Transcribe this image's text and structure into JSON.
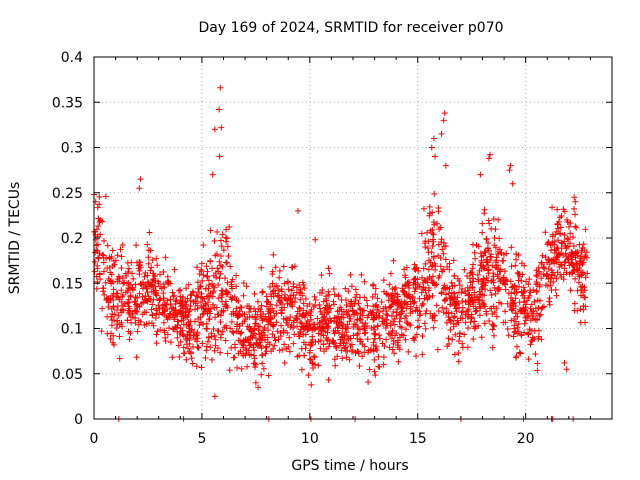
{
  "chart_data": {
    "type": "scatter",
    "title": "Day 169 of 2024, SRMTID for receiver p070",
    "xlabel": "GPS time / hours",
    "ylabel": "SRMTID / TECUs",
    "xlim": [
      0,
      24
    ],
    "ylim": [
      0,
      0.4
    ],
    "x_ticks": [
      0,
      5,
      10,
      15,
      20
    ],
    "x_tick_labels": [
      "0",
      "5",
      "10",
      "15",
      "20"
    ],
    "y_ticks": [
      0,
      0.05,
      0.1,
      0.15,
      0.2,
      0.25,
      0.3,
      0.35,
      0.4
    ],
    "y_tick_labels": [
      "0",
      "0.05",
      "0.1",
      "0.15",
      "0.2",
      "0.25",
      "0.3",
      "0.35",
      "0.4"
    ],
    "grid": true,
    "marker": "+",
    "color": "#ff0000",
    "profile_hours": [
      0,
      0.5,
      1,
      1.5,
      2,
      2.5,
      3,
      3.5,
      4,
      4.5,
      5,
      5.5,
      6,
      6.5,
      7,
      7.5,
      8,
      8.5,
      9,
      9.5,
      10,
      10.5,
      11,
      11.5,
      12,
      12.5,
      13,
      13.5,
      14,
      14.5,
      15,
      15.5,
      16,
      16.5,
      17,
      17.5,
      18,
      18.5,
      19,
      19.5,
      20,
      20.5,
      21,
      21.5,
      22,
      22.5,
      23
    ],
    "profile_center": [
      0.19,
      0.16,
      0.14,
      0.13,
      0.13,
      0.15,
      0.14,
      0.12,
      0.11,
      0.1,
      0.12,
      0.13,
      0.14,
      0.11,
      0.09,
      0.095,
      0.1,
      0.12,
      0.11,
      0.12,
      0.09,
      0.1,
      0.11,
      0.1,
      0.11,
      0.1,
      0.1,
      0.11,
      0.12,
      0.12,
      0.13,
      0.17,
      0.17,
      0.13,
      0.12,
      0.13,
      0.15,
      0.16,
      0.15,
      0.13,
      0.12,
      0.13,
      0.16,
      0.19,
      0.19,
      0.16,
      0.15
    ],
    "profile_spread": [
      0.05,
      0.05,
      0.05,
      0.04,
      0.05,
      0.04,
      0.04,
      0.04,
      0.04,
      0.04,
      0.05,
      0.06,
      0.07,
      0.05,
      0.04,
      0.04,
      0.05,
      0.05,
      0.05,
      0.05,
      0.04,
      0.04,
      0.04,
      0.04,
      0.04,
      0.04,
      0.04,
      0.04,
      0.04,
      0.04,
      0.05,
      0.06,
      0.07,
      0.05,
      0.04,
      0.04,
      0.06,
      0.06,
      0.05,
      0.05,
      0.04,
      0.05,
      0.05,
      0.04,
      0.05,
      0.05,
      0.04
    ],
    "peaks": [
      {
        "x": 5.85,
        "y": 0.366
      },
      {
        "x": 5.8,
        "y": 0.342
      },
      {
        "x": 5.9,
        "y": 0.322
      },
      {
        "x": 5.6,
        "y": 0.32
      },
      {
        "x": 5.82,
        "y": 0.29
      },
      {
        "x": 5.5,
        "y": 0.27
      },
      {
        "x": 5.6,
        "y": 0.025
      },
      {
        "x": 16.25,
        "y": 0.338
      },
      {
        "x": 16.2,
        "y": 0.33
      },
      {
        "x": 15.75,
        "y": 0.31
      },
      {
        "x": 16.1,
        "y": 0.315
      },
      {
        "x": 15.65,
        "y": 0.3
      },
      {
        "x": 16.3,
        "y": 0.28
      },
      {
        "x": 15.8,
        "y": 0.29
      },
      {
        "x": 18.35,
        "y": 0.292
      },
      {
        "x": 18.3,
        "y": 0.288
      },
      {
        "x": 17.9,
        "y": 0.27
      },
      {
        "x": 19.3,
        "y": 0.28
      },
      {
        "x": 19.25,
        "y": 0.275
      },
      {
        "x": 19.4,
        "y": 0.26
      },
      {
        "x": 2.15,
        "y": 0.265
      },
      {
        "x": 2.1,
        "y": 0.255
      },
      {
        "x": 0.0,
        "y": 0.248
      },
      {
        "x": 0.55,
        "y": 0.246
      },
      {
        "x": 9.45,
        "y": 0.23
      },
      {
        "x": 10.25,
        "y": 0.198
      },
      {
        "x": 7.5,
        "y": 0.04
      },
      {
        "x": 7.6,
        "y": 0.035
      },
      {
        "x": 21.8,
        "y": 0.062
      },
      {
        "x": 21.9,
        "y": 0.055
      },
      {
        "x": 22.25,
        "y": 0.245
      },
      {
        "x": 22.3,
        "y": 0.24
      },
      {
        "x": 0.08,
        "y": 0.24
      }
    ],
    "zero_points_x": [
      1.15,
      4.15,
      8.1,
      10.05,
      12.1,
      17.0,
      19.9,
      21.2,
      21.25,
      22.2
    ]
  }
}
